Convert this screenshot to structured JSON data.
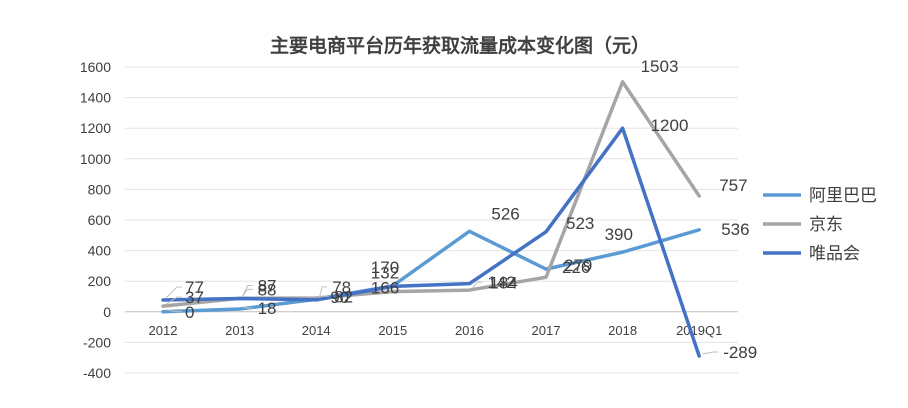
{
  "chart_data": {
    "type": "line",
    "title": "主要电商平台历年获取流量成本变化图（元）",
    "categories": [
      "2012",
      "2013",
      "2014",
      "2015",
      "2016",
      "2017",
      "2018",
      "2019Q1"
    ],
    "ylim": [
      -400,
      1600
    ],
    "yticks": [
      -400,
      -200,
      0,
      200,
      400,
      600,
      800,
      1000,
      1200,
      1400,
      1600
    ],
    "grid": true,
    "legend_position": "right",
    "series": [
      {
        "name": "阿里巴巴",
        "color": "#5b9bd5",
        "values": [
          0,
          18,
          82,
          170,
          526,
          279,
          390,
          536
        ]
      },
      {
        "name": "京东",
        "color": "#a5a5a5",
        "values": [
          37,
          88,
          90,
          132,
          142,
          226,
          1503,
          757
        ]
      },
      {
        "name": "唯品会",
        "color": "#4472c4",
        "values": [
          77,
          87,
          78,
          166,
          184,
          523,
          1200,
          -289
        ]
      }
    ]
  }
}
